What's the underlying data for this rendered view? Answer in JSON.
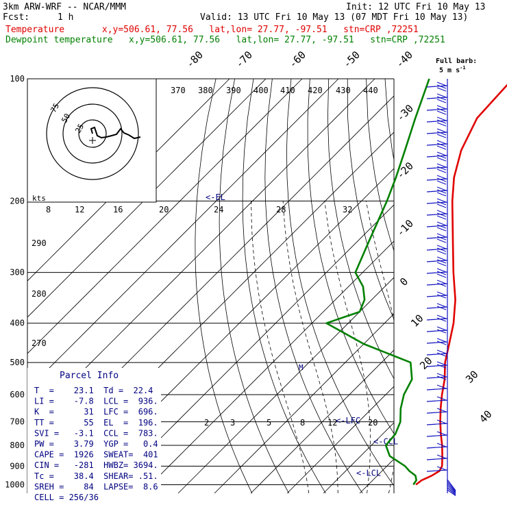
{
  "header": {
    "model": "3km ARW-WRF -- NCAR/MMM",
    "init": "Init: 12 UTC Fri 10 May 13",
    "fcst_label": "Fcst:",
    "fcst_value": "1 h",
    "valid": "Valid: 13 UTC Fri 10 May 13 (07 MDT Fri 10 May 13)",
    "temp_line": "Temperature       x,y=506.61, 77.56   lat,lon= 27.77, -97.51   stn=CRP ,72251",
    "dew_line": "Dewpoint temperature   x,y=506.61, 77.56   lat,lon= 27.77, -97.51   stn=CRP ,72251",
    "barb_key_line1": "Full barb:",
    "barb_key_line2": "5 m s",
    "barb_key_sup": "-1"
  },
  "colors": {
    "temperature": "#e00000",
    "dewpoint": "#008000",
    "parcel_text": "#000080",
    "barb": "#1010c0"
  },
  "chart_data": {
    "type": "line",
    "pressure_ticks": [
      100,
      200,
      300,
      400,
      500,
      600,
      700,
      800,
      900,
      1000
    ],
    "isotherm_labels": [
      "-80",
      "-70",
      "-60",
      "-50",
      "-40",
      "-30",
      "-20",
      "-10",
      "0",
      "10",
      "20",
      "30",
      "40"
    ],
    "theta_labels": [
      "370",
      "380",
      "390",
      "400",
      "410",
      "420",
      "430",
      "440"
    ],
    "theta_left_labels": [
      "290",
      "280",
      "270"
    ],
    "mixing_ratio_labels": [
      "2",
      "3",
      "5",
      "8",
      "12",
      "20"
    ],
    "hodograph": {
      "unit_label": "kts",
      "ring_labels": [
        "75",
        "50",
        "25"
      ],
      "speed_labels": [
        "8",
        "12",
        "16",
        "20",
        "24",
        "28",
        "32"
      ]
    },
    "level_markers": [
      {
        "label": "<-EL",
        "p": 196
      },
      {
        "label": "<-LFC",
        "p": 696
      },
      {
        "label": "<-CCL",
        "p": 783
      },
      {
        "label": "<-LCL",
        "p": 936
      }
    ],
    "temperature_series": {
      "name": "Temperature",
      "p": [
        1000,
        975,
        950,
        925,
        900,
        850,
        800,
        750,
        700,
        650,
        600,
        550,
        500,
        450,
        400,
        350,
        300,
        250,
        200,
        175,
        150,
        125,
        100
      ],
      "t": [
        23.1,
        23.5,
        25.0,
        25.8,
        25.2,
        22.5,
        19.5,
        16.0,
        12.5,
        9.0,
        5.5,
        2.0,
        -2.5,
        -6.5,
        -11.0,
        -17.0,
        -25.0,
        -34.0,
        -45.0,
        -51.0,
        -56.5,
        -61.0,
        -62.0
      ]
    },
    "dewpoint_series": {
      "name": "Dewpoint temperature",
      "p": [
        1000,
        975,
        950,
        925,
        900,
        850,
        800,
        750,
        700,
        650,
        600,
        550,
        500,
        450,
        400,
        375,
        350,
        325,
        300,
        250,
        200,
        175,
        150,
        125,
        100
      ],
      "td": [
        22.4,
        22.0,
        20.5,
        17.5,
        15.0,
        8.0,
        4.0,
        3.5,
        1.5,
        -2.0,
        -5.0,
        -7.0,
        -12.0,
        -30.0,
        -46.0,
        -40.0,
        -42.0,
        -46.0,
        -52.0,
        -57.0,
        -63.0,
        -67.0,
        -72.0,
        -78.0,
        -85.0
      ]
    }
  },
  "parcel_info": {
    "title": "Parcel Info",
    "rows": [
      "T  =    23.1  Td =  22.4",
      "LI =    -7.8  LCL =  936.",
      "K  =      31  LFC =  696.",
      "TT =      55  EL  =  196.",
      "SVI =   -3.1  CCL =  783.",
      "PW =    3.79  YGP =   0.4",
      "CAPE =  1926  SWEAT=  401",
      "CIN =   -281  HWBZ= 3694.",
      "Tc =    38.4  SHEAR= .51.",
      "SREH =    84  LAPSE=  8.6",
      "CELL = 256/36"
    ]
  }
}
